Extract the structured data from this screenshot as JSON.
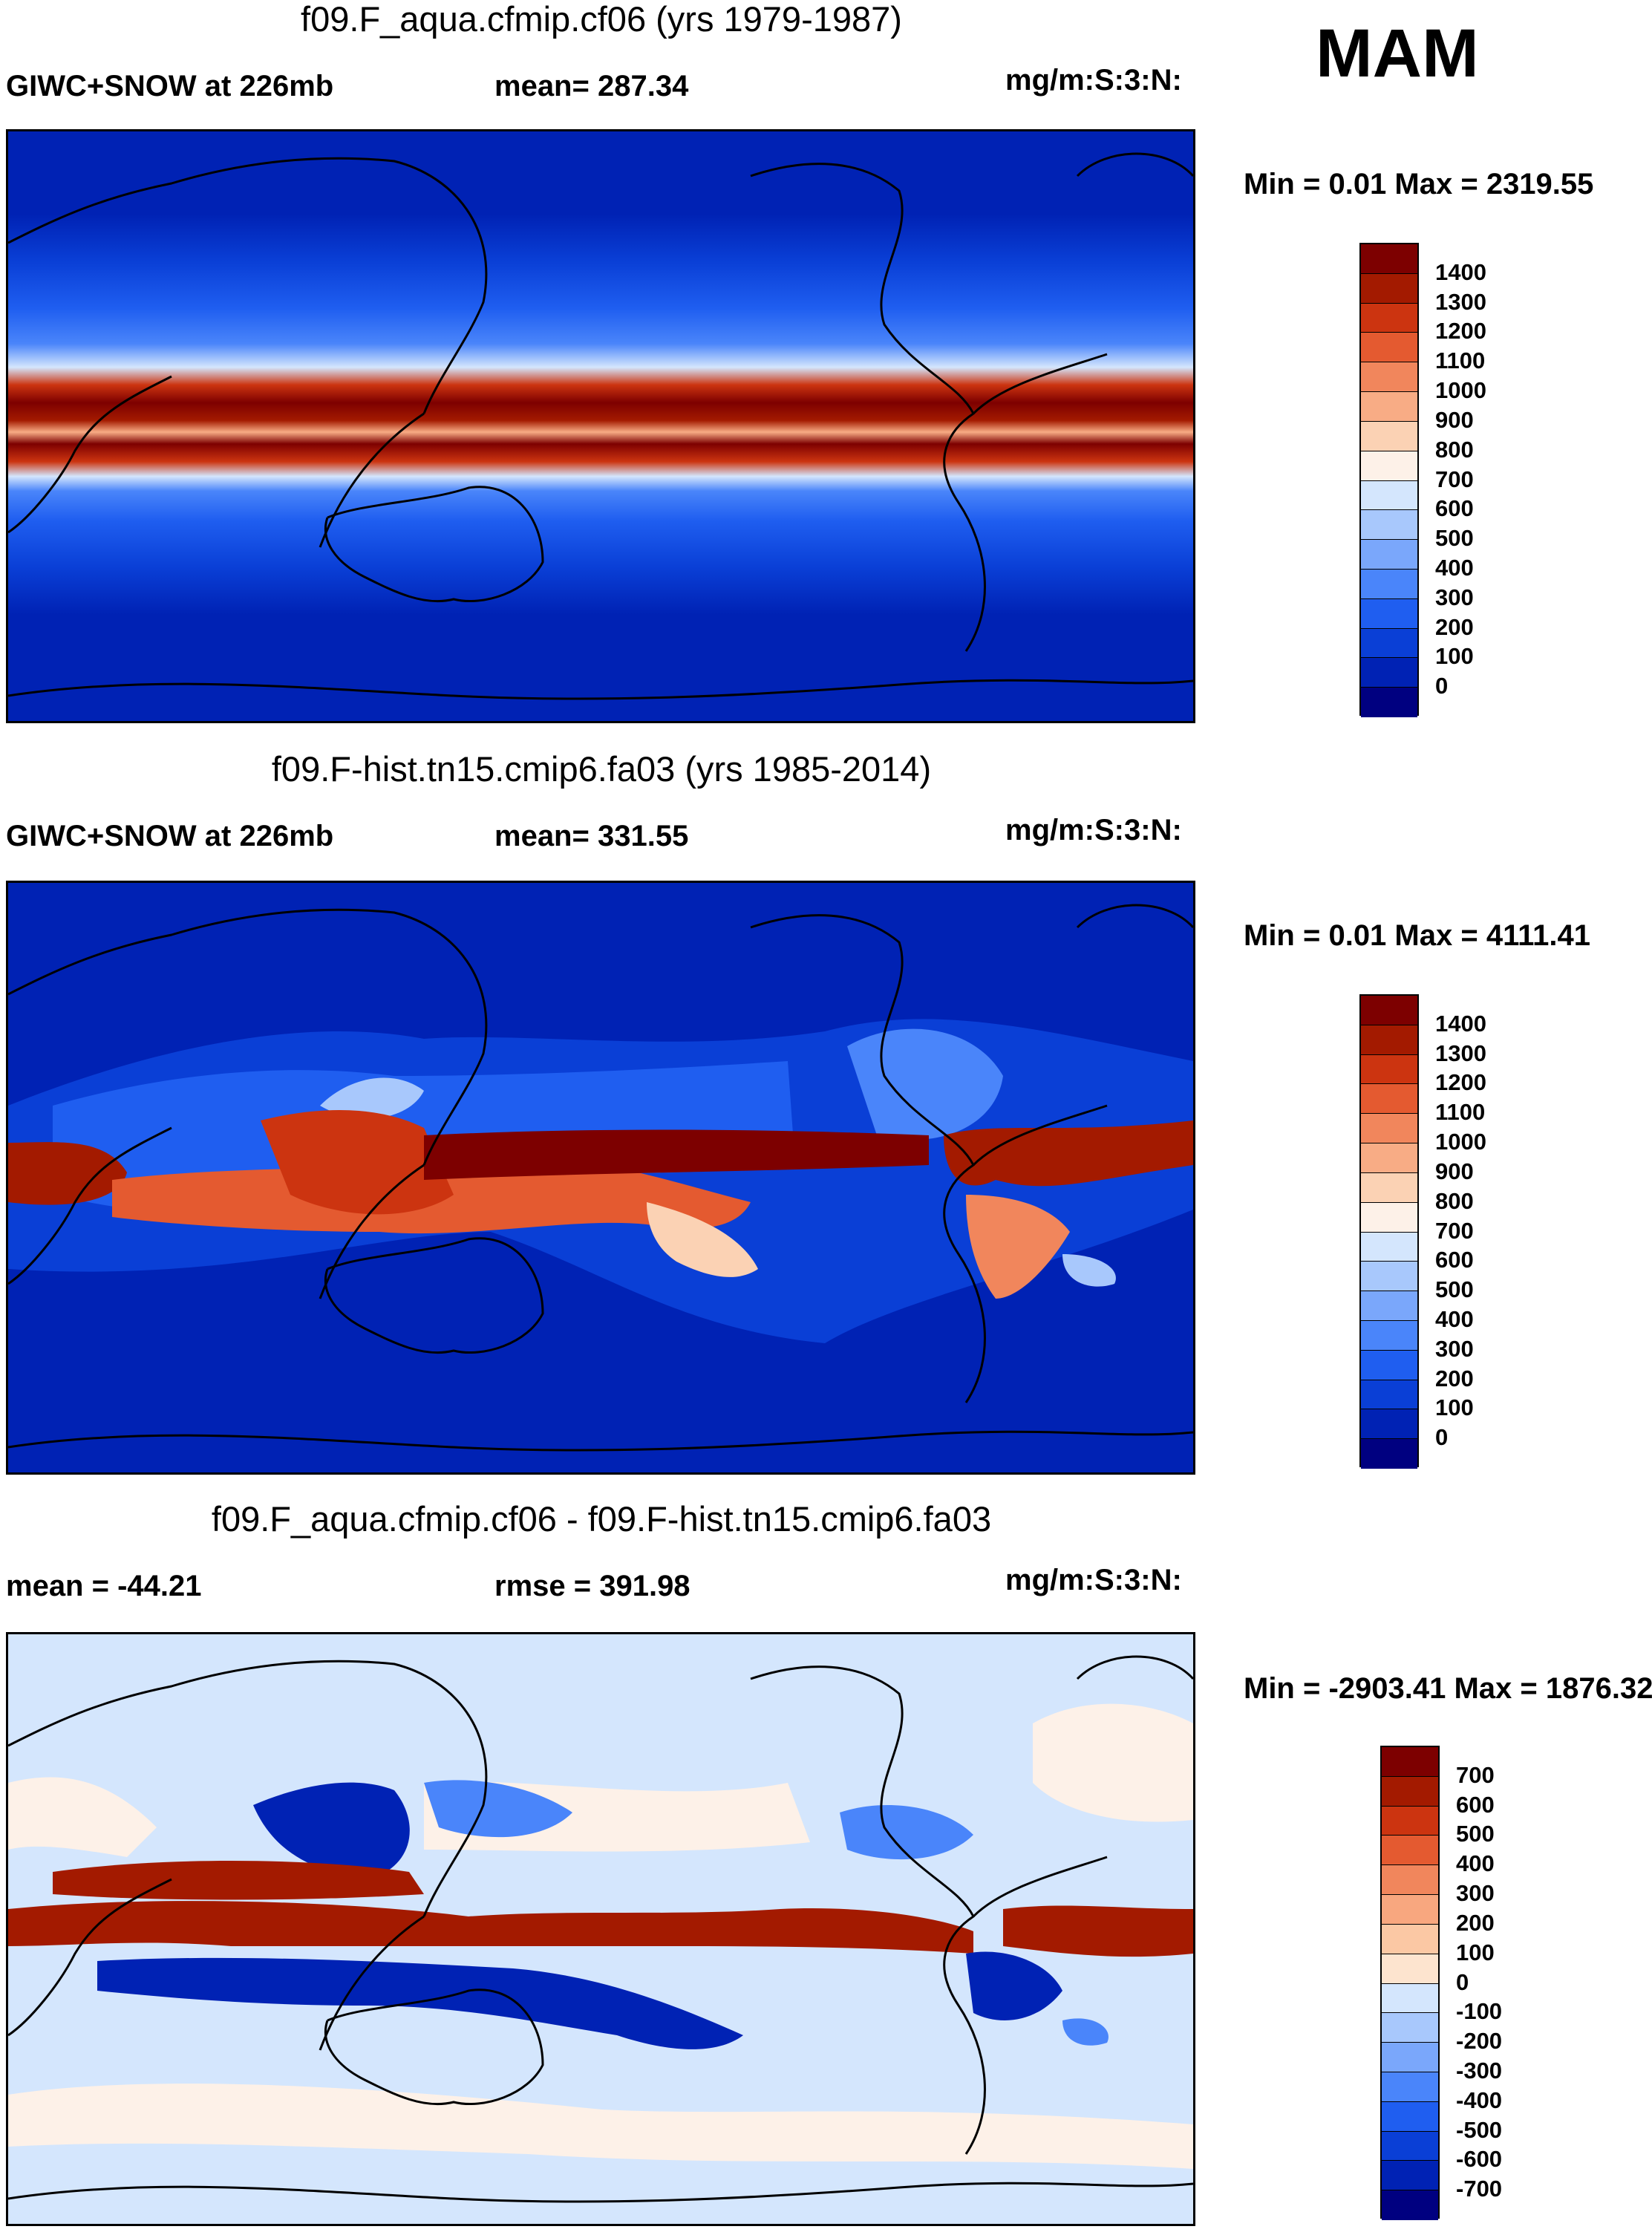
{
  "season": "MAM",
  "colors": {
    "abs_scale": [
      "#000080",
      "#0022b4",
      "#0a3fd6",
      "#1f5ef0",
      "#4a85fa",
      "#7aa7fb",
      "#a8c8fc",
      "#d4e6fd",
      "#fdf1e8",
      "#fbd2b4",
      "#f8ac85",
      "#f1865c",
      "#e45a30",
      "#cc3410",
      "#a31a00",
      "#7d0000"
    ],
    "diff_scale": [
      "#000080",
      "#0022b4",
      "#0a3fd6",
      "#1f5ef0",
      "#4a85fa",
      "#7aa7fb",
      "#a8c8fc",
      "#d4e6fd",
      "#fde4cf",
      "#fbc8a4",
      "#f8a77f",
      "#f1865c",
      "#e45a30",
      "#cc3410",
      "#a31a00",
      "#7d0000"
    ]
  },
  "panels": [
    {
      "title": "f09.F_aqua.cfmip.cf06 (yrs 1979-1987)",
      "left_label": "GIWC+SNOW at 226mb",
      "center_label": "mean= 287.34",
      "units": "mg/m:S:3:N:",
      "minmax": "Min =   0.01 Max = 2319.55",
      "ticks": [
        "1400",
        "1300",
        "1200",
        "1100",
        "1000",
        "900",
        "800",
        "700",
        "600",
        "500",
        "400",
        "300",
        "200",
        "100",
        "0"
      ]
    },
    {
      "title": "f09.F-hist.tn15.cmip6.fa03 (yrs 1985-2014)",
      "left_label": "GIWC+SNOW at 226mb",
      "center_label": "mean= 331.55",
      "units": "mg/m:S:3:N:",
      "minmax": "Min =   0.01 Max = 4111.41",
      "ticks": [
        "1400",
        "1300",
        "1200",
        "1100",
        "1000",
        "900",
        "800",
        "700",
        "600",
        "500",
        "400",
        "300",
        "200",
        "100",
        "0"
      ]
    },
    {
      "title": "f09.F_aqua.cfmip.cf06 - f09.F-hist.tn15.cmip6.fa03",
      "left_label": "mean = -44.21",
      "center_label": "rmse = 391.98",
      "units": "mg/m:S:3:N:",
      "minmax": "Min = -2903.41 Max = 1876.32",
      "ticks": [
        "700",
        "600",
        "500",
        "400",
        "300",
        "200",
        "100",
        "0",
        "-100",
        "-200",
        "-300",
        "-400",
        "-500",
        "-600",
        "-700"
      ]
    }
  ]
}
